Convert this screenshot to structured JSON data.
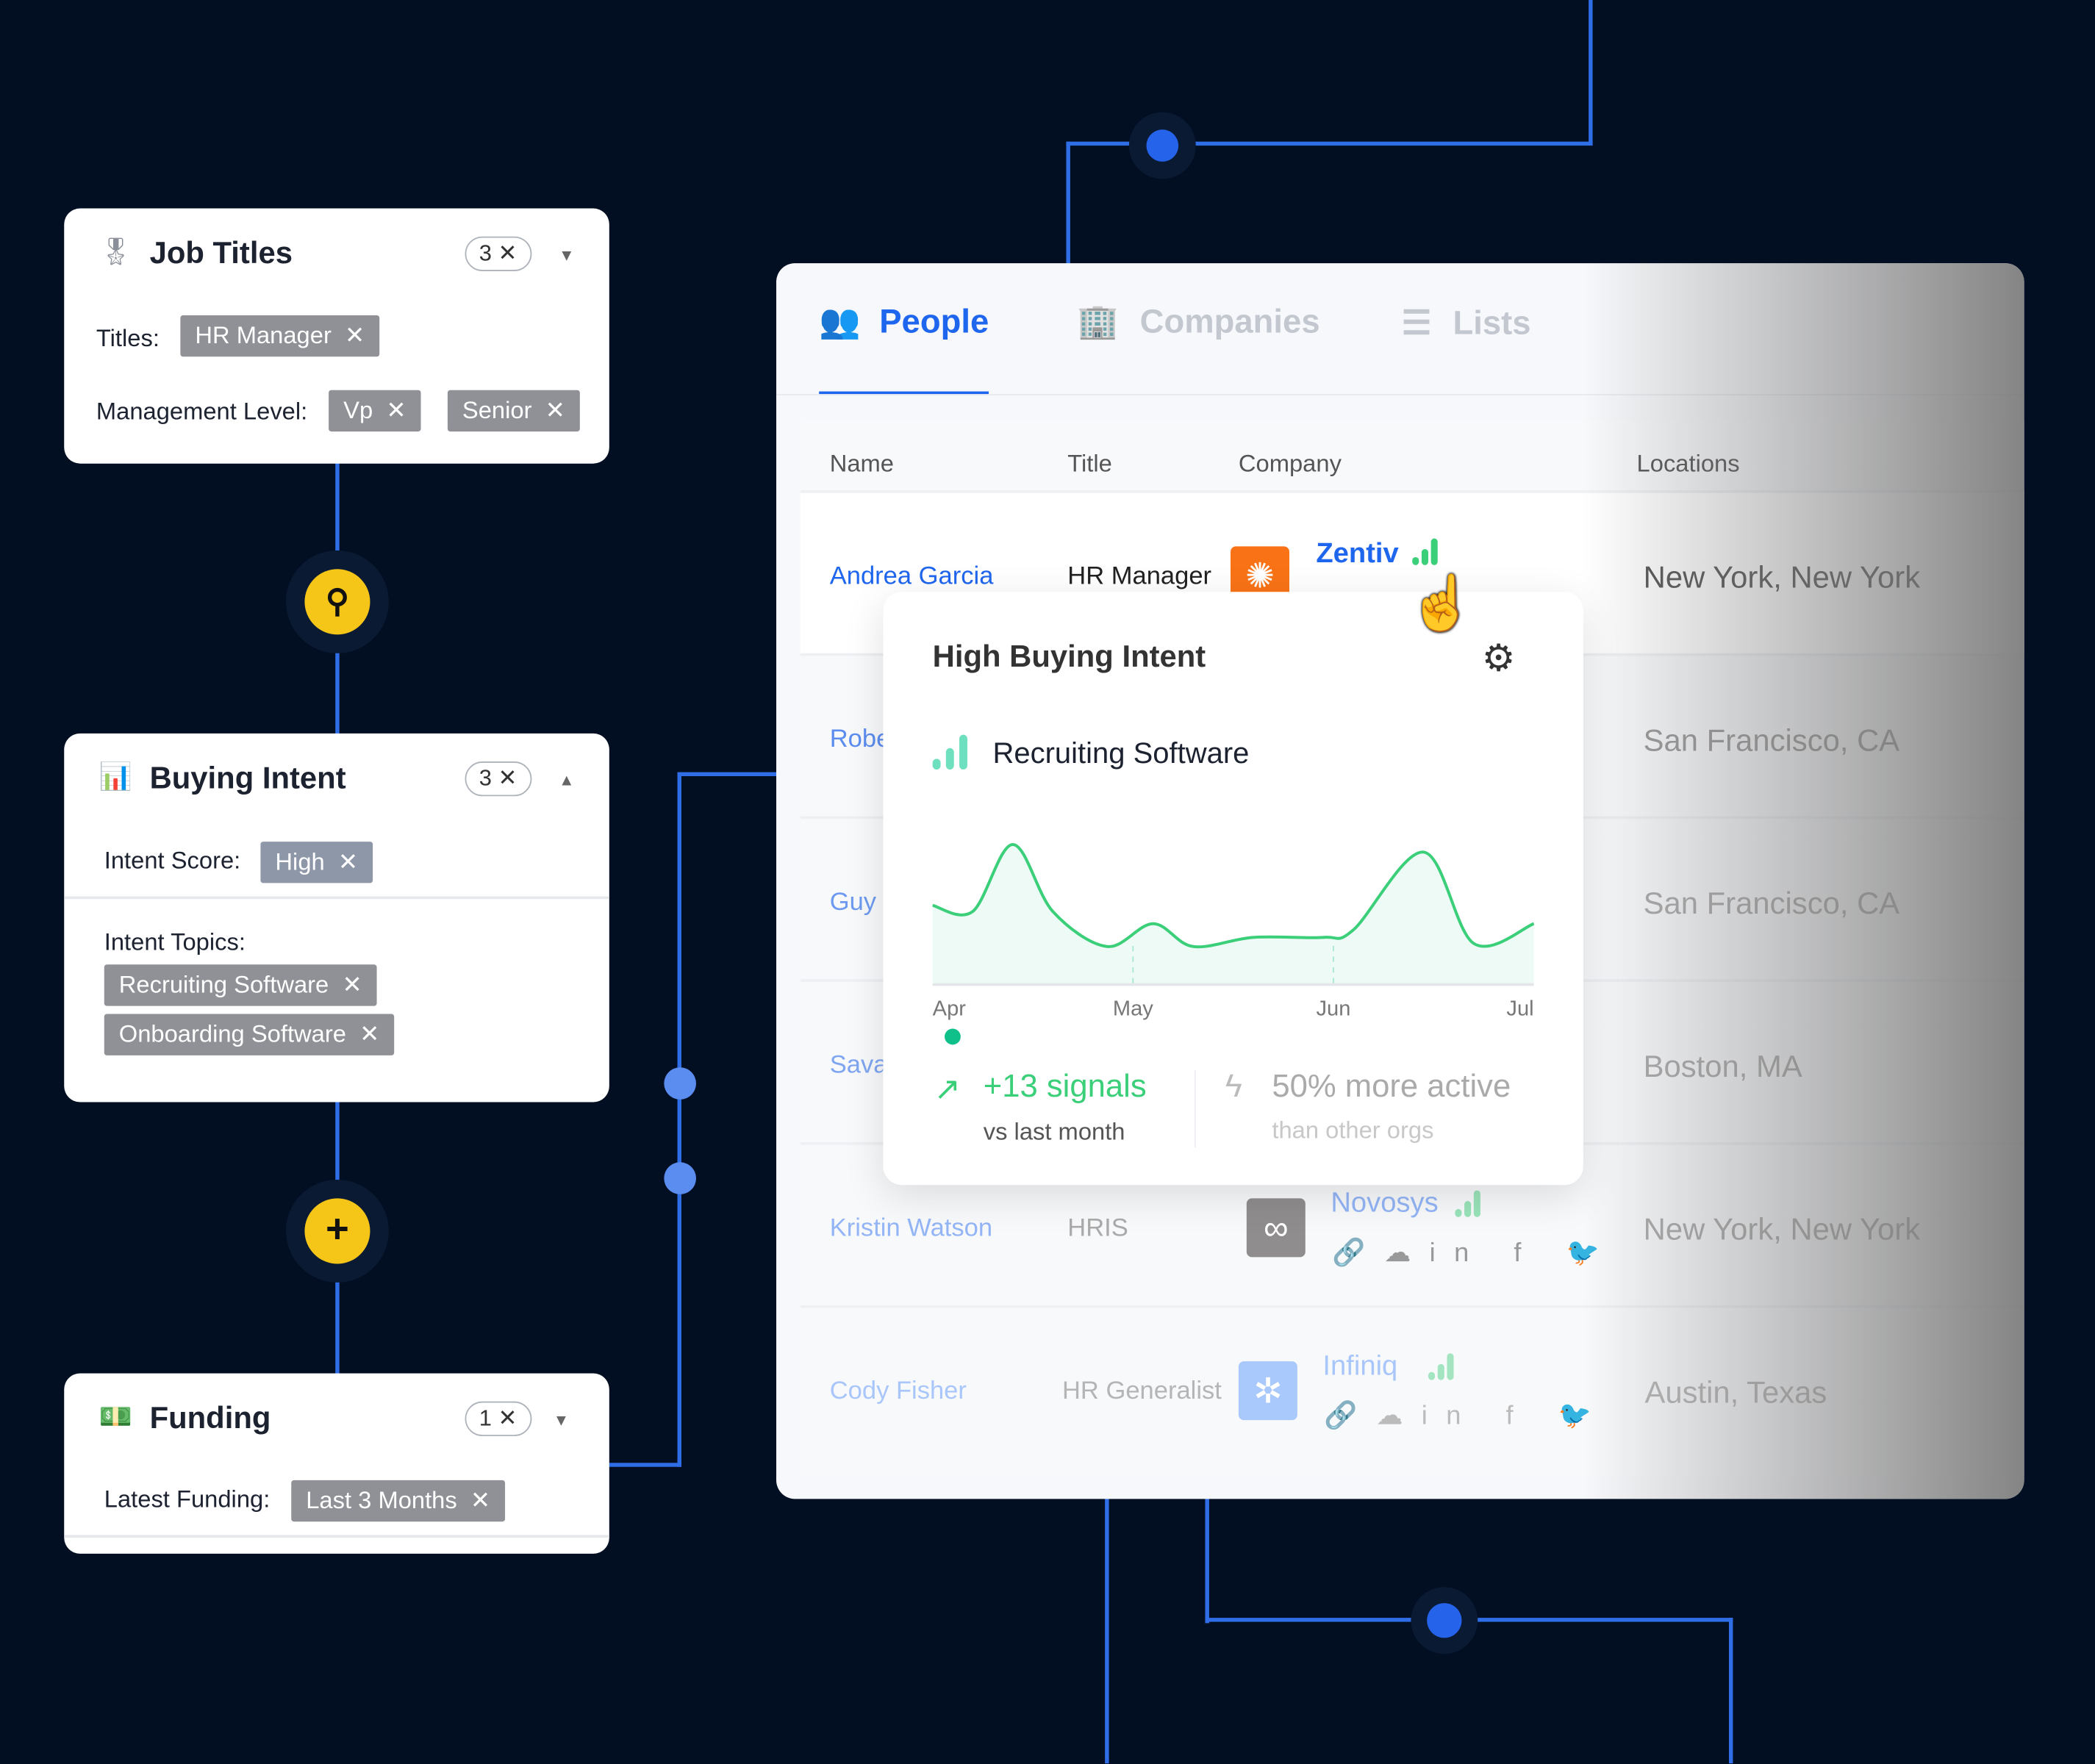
{
  "filters": {
    "job_titles": {
      "title": "Job Titles",
      "count": "3",
      "titles_label": "Titles:",
      "titles": [
        "HR Manager"
      ],
      "management_label": "Management Level:",
      "management": [
        "Vp",
        "Senior"
      ]
    },
    "buying_intent": {
      "title": "Buying Intent",
      "count": "3",
      "score_label": "Intent Score:",
      "score": [
        "High"
      ],
      "topics_label": "Intent Topics:",
      "topics": [
        "Recruiting Software",
        "Onboarding Software"
      ]
    },
    "funding": {
      "title": "Funding",
      "count": "1",
      "latest_label": "Latest Funding:",
      "latest": [
        "Last 3 Months"
      ]
    }
  },
  "tabs": [
    {
      "label": "People",
      "active": true
    },
    {
      "label": "Companies"
    },
    {
      "label": "Lists"
    }
  ],
  "table": {
    "headers": [
      "Name",
      "Title",
      "Company",
      "Locations"
    ],
    "rows": [
      {
        "name": "Andrea Garcia",
        "title": "HR Manager",
        "company": "Zentiv",
        "location": "New York, New York",
        "logo_color": "#f97316"
      },
      {
        "name": "Robe",
        "location": "San Francisco, CA"
      },
      {
        "name": "Guy",
        "location": "San Francisco, CA"
      },
      {
        "name": "Sava",
        "location": "Boston, MA"
      },
      {
        "name": "Kristin Watson",
        "title": "HRIS",
        "company": "Novosys",
        "location": "New York, New York",
        "logo_color": "#8f8d8e"
      },
      {
        "name": "Cody Fisher",
        "title": "HR Generalist",
        "company": "Infiniq",
        "location": "Austin, Texas",
        "logo_color": "#a9c8fb"
      }
    ]
  },
  "popover": {
    "title": "High Buying Intent",
    "topic": "Recruiting Software",
    "signals": "+13 signals",
    "signals_sub": "vs last month",
    "activity": "50% more active",
    "activity_sub": "than other orgs"
  },
  "chart_data": {
    "type": "area",
    "x_ticks": [
      "Apr",
      "May",
      "Jun",
      "Jul"
    ],
    "x": [
      0,
      0.2,
      0.4,
      0.6,
      0.87,
      1.1,
      1.3,
      1.6,
      1.95,
      2.1,
      2.45,
      2.7,
      3.0
    ],
    "values": [
      52,
      48,
      92,
      48,
      25,
      40,
      25,
      31,
      31,
      36,
      87,
      27,
      40
    ],
    "ylim": [
      0,
      100
    ],
    "color": "#3ccf7a",
    "grid": false
  },
  "colors": {
    "accent": "#1f66ee",
    "signal": "#3ccf7a",
    "background": "#020e22",
    "connector": "#2f6ee6",
    "node": "#f5c518"
  }
}
